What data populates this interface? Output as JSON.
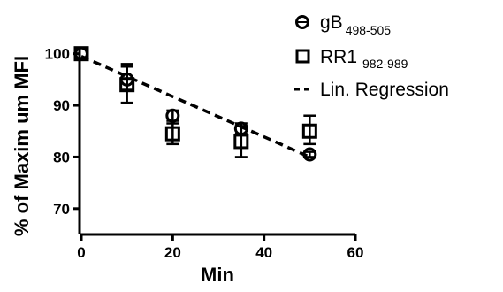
{
  "chart_data": {
    "type": "scatter",
    "xlabel": "Min",
    "ylabel": "% of Maxim um MFI",
    "xlim": [
      0,
      60
    ],
    "ylim": [
      65,
      102
    ],
    "x_ticks": [
      "0",
      "20",
      "40",
      "60"
    ],
    "y_ticks": [
      "70",
      "80",
      "90",
      "100"
    ],
    "grid": false,
    "legend_position": "top-right",
    "series": [
      {
        "name": "gB",
        "name_subscript": "498-505",
        "marker": "circle",
        "x": [
          0,
          10,
          20,
          35,
          50
        ],
        "y": [
          100,
          95,
          88,
          85.5,
          80.5
        ],
        "err_low": [
          0,
          2,
          1,
          1,
          0.5
        ],
        "err_high": [
          0,
          3,
          1,
          1,
          0.5
        ]
      },
      {
        "name": "RR1",
        "name_subscript": "982-989",
        "marker": "square",
        "x": [
          0,
          10,
          20,
          35,
          50
        ],
        "y": [
          100,
          94,
          84.5,
          83,
          85
        ],
        "err_low": [
          0,
          3.5,
          2,
          3,
          2.5
        ],
        "err_high": [
          0,
          3.5,
          2,
          3,
          3
        ]
      },
      {
        "name": "Lin. Regression",
        "style": "dashed",
        "x": [
          0,
          50
        ],
        "y": [
          99.5,
          80
        ]
      }
    ]
  }
}
